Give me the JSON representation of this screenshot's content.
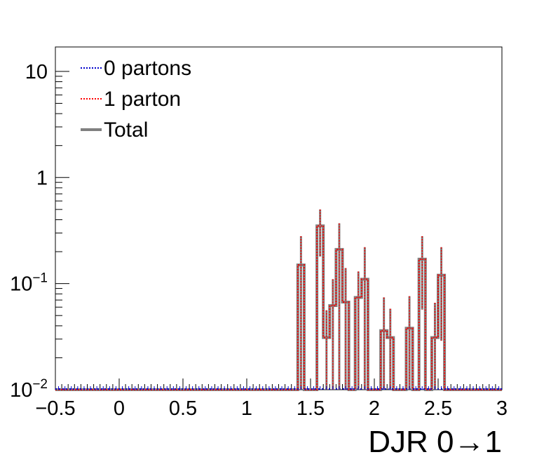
{
  "chart_data": {
    "type": "histogram",
    "xlabel": "DJR 0→1",
    "ylabel": "",
    "xlim": [
      -0.5,
      3.0
    ],
    "ylim": [
      0.01,
      17
    ],
    "yscale": "log",
    "grid": false,
    "legend_position": "top-left",
    "x_ticks": [
      "−0.5",
      "0",
      "0.5",
      "1",
      "1.5",
      "2",
      "2.5",
      "3"
    ],
    "x_tick_values": [
      -0.5,
      0,
      0.5,
      1,
      1.5,
      2,
      2.5,
      3
    ],
    "y_ticks": [
      {
        "value": 10,
        "base": "10",
        "exp": ""
      },
      {
        "value": 1,
        "base": "1",
        "exp": ""
      },
      {
        "value": 0.1,
        "base": "10",
        "exp": "−1"
      },
      {
        "value": 0.01,
        "base": "10",
        "exp": "−2"
      }
    ],
    "bin_width": 0.05,
    "x_start": -0.5,
    "series": [
      {
        "name": "0 partons",
        "color": "#0000cc",
        "style": "dotted"
      },
      {
        "name": "1 parton",
        "color": "#ff0000",
        "style": "dotted"
      },
      {
        "name": "Total",
        "color": "#808080",
        "style": "solid"
      }
    ],
    "bins": [
      {
        "x": 1.4,
        "value": 0.15,
        "err_hi": 0.28
      },
      {
        "x": 1.55,
        "value": 0.35,
        "err_hi": 0.5,
        "err_lo": 0.18
      },
      {
        "x": 1.6,
        "value": 0.031,
        "err_hi": 0.056
      },
      {
        "x": 1.65,
        "value": 0.062,
        "err_hi": 0.11
      },
      {
        "x": 1.7,
        "value": 0.21,
        "err_hi": 0.37
      },
      {
        "x": 1.75,
        "value": 0.067,
        "err_hi": 0.14
      },
      {
        "x": 1.85,
        "value": 0.074,
        "err_hi": 0.13
      },
      {
        "x": 1.9,
        "value": 0.11,
        "err_hi": 0.22
      },
      {
        "x": 2.05,
        "value": 0.036,
        "err_hi": 0.074
      },
      {
        "x": 2.1,
        "value": 0.031,
        "err_hi": 0.058
      },
      {
        "x": 2.25,
        "value": 0.038,
        "err_hi": 0.076
      },
      {
        "x": 2.35,
        "value": 0.17,
        "err_hi": 0.28,
        "err_lo": 0.057
      },
      {
        "x": 2.45,
        "value": 0.031,
        "err_hi": 0.066
      },
      {
        "x": 2.5,
        "value": 0.12,
        "err_hi": 0.22,
        "err_lo": 0.029
      }
    ]
  }
}
